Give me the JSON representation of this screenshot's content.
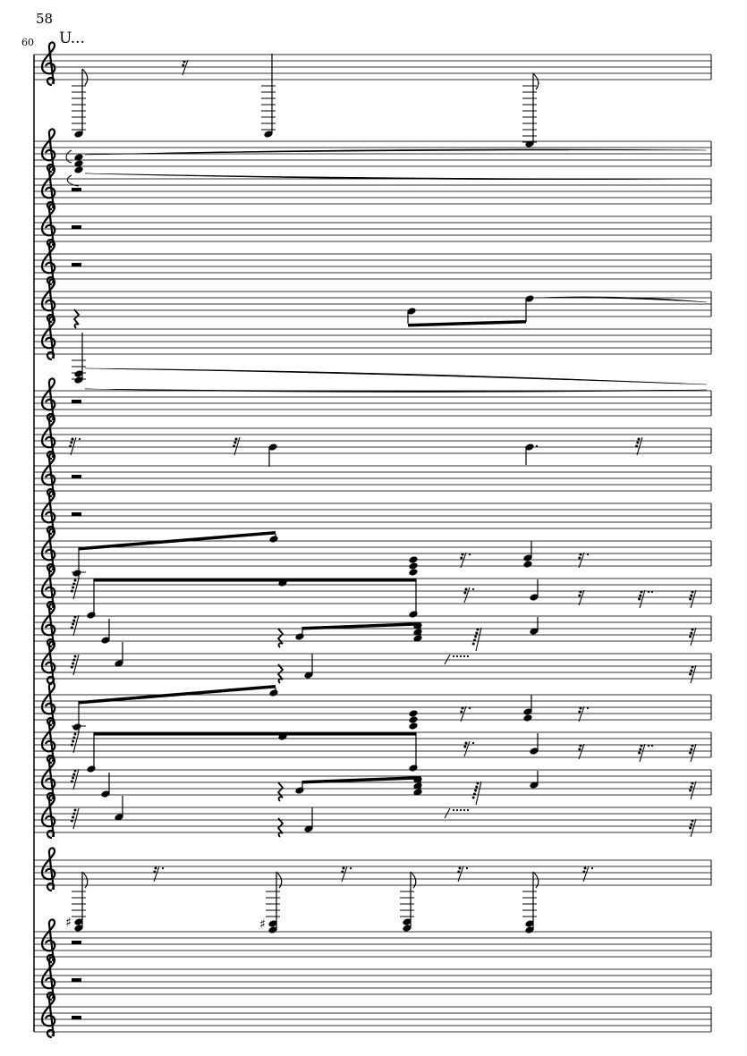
{
  "header": {
    "measure_number": "58",
    "system_measure_number": "60",
    "tempo_mark": "U..."
  },
  "score": {
    "staff_count": 23,
    "clef": "treble-clef-icon",
    "ink_color": "#000000",
    "staff_line_color": "#333333"
  }
}
